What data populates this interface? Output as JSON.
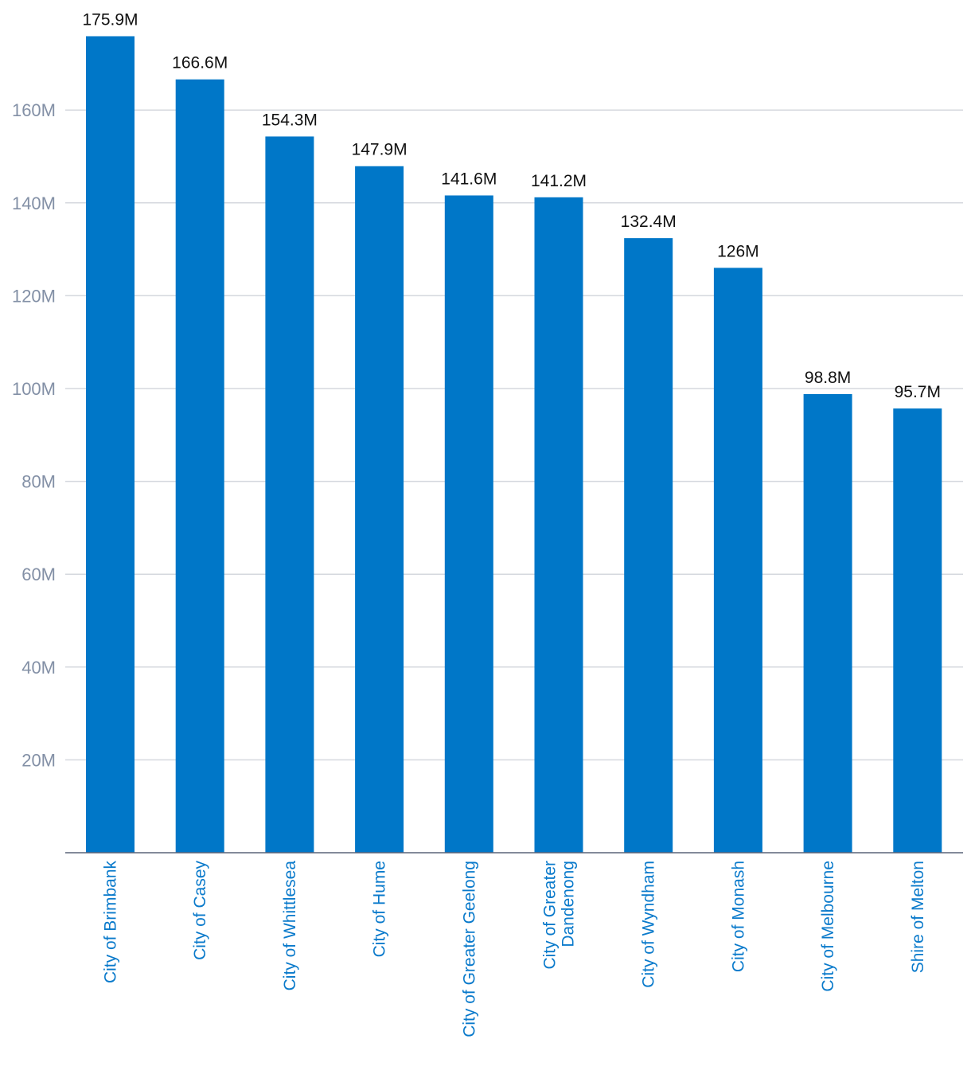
{
  "chart_data": {
    "type": "bar",
    "title": "",
    "xlabel": "",
    "ylabel": "",
    "categories": [
      "City of Brimbank",
      "City of Casey",
      "City of Whittlesea",
      "City of Hume",
      "City of Greater Geelong",
      "City of Greater Dandenong",
      "City of Wyndham",
      "City of Monash",
      "City of Melbourne",
      "Shire of Melton"
    ],
    "category_lines": [
      [
        "City of Brimbank"
      ],
      [
        "City of Casey"
      ],
      [
        "City of Whittlesea"
      ],
      [
        "City of Hume"
      ],
      [
        "City of Greater Geelong"
      ],
      [
        "City of Greater",
        "Dandenong"
      ],
      [
        "City of Wyndham"
      ],
      [
        "City of Monash"
      ],
      [
        "City of Melbourne"
      ],
      [
        "Shire of Melton"
      ]
    ],
    "values": [
      175.9,
      166.6,
      154.3,
      147.9,
      141.6,
      141.2,
      132.4,
      126,
      98.8,
      95.7
    ],
    "value_labels": [
      "175.9M",
      "166.6M",
      "154.3M",
      "147.9M",
      "141.6M",
      "141.2M",
      "132.4M",
      "126M",
      "98.8M",
      "95.7M"
    ],
    "ylim": [
      0,
      180
    ],
    "yticks": [
      20,
      40,
      60,
      80,
      100,
      120,
      140,
      160
    ],
    "ytick_labels": [
      "20M",
      "40M",
      "60M",
      "80M",
      "100M",
      "120M",
      "140M",
      "160M"
    ],
    "grid": true,
    "legend": "none",
    "colors": {
      "bar": "#0077c8",
      "category_text": "#0a7acb",
      "tick_text": "#8390a6",
      "value_text": "#111111",
      "grid": "#d5d8de",
      "axis": "#5a6478"
    }
  }
}
